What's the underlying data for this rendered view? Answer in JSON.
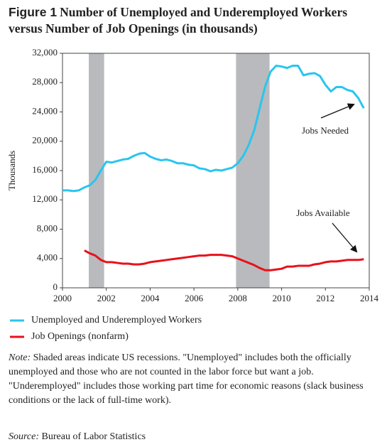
{
  "chart_data": {
    "type": "line",
    "figure_label": "Figure 1",
    "title": "Number of Unemployed and Underemployed Workers versus Number of Job Openings (in thousands)",
    "ylabel": "Thousands",
    "xlim": [
      2000,
      2014
    ],
    "xticks": [
      2000,
      2002,
      2004,
      2006,
      2008,
      2010,
      2012,
      2014
    ],
    "ylim": [
      0,
      32000
    ],
    "yticks": [
      0,
      {
        "value": 4000,
        "label": "4,000"
      },
      {
        "value": 8000,
        "label": "8,000"
      },
      {
        "value": 12000,
        "label": "12,000"
      },
      {
        "value": 16000,
        "label": "16,000"
      },
      {
        "value": 20000,
        "label": "20,000"
      },
      {
        "value": 24000,
        "label": "24,000"
      },
      {
        "value": 28000,
        "label": "28,000"
      },
      {
        "value": 32000,
        "label": "32,000"
      }
    ],
    "recessions": [
      {
        "start": 2001.2,
        "end": 2001.9
      },
      {
        "start": 2007.92,
        "end": 2009.45
      }
    ],
    "recession_color": "#b9babd",
    "x": [
      2000.0,
      2000.25,
      2000.5,
      2000.75,
      2001.0,
      2001.25,
      2001.5,
      2001.75,
      2002.0,
      2002.25,
      2002.5,
      2002.75,
      2003.0,
      2003.25,
      2003.5,
      2003.75,
      2004.0,
      2004.25,
      2004.5,
      2004.75,
      2005.0,
      2005.25,
      2005.5,
      2005.75,
      2006.0,
      2006.25,
      2006.5,
      2006.75,
      2007.0,
      2007.25,
      2007.5,
      2007.75,
      2008.0,
      2008.25,
      2008.5,
      2008.75,
      2009.0,
      2009.25,
      2009.5,
      2009.75,
      2010.0,
      2010.25,
      2010.5,
      2010.75,
      2011.0,
      2011.25,
      2011.5,
      2011.75,
      2012.0,
      2012.25,
      2012.5,
      2012.75,
      2013.0,
      2013.25,
      2013.5,
      2013.75
    ],
    "series": [
      {
        "name": "Unemployed and Underemployed Workers",
        "color": "#29c5f0",
        "values": [
          13300,
          13300,
          13200,
          13300,
          13700,
          14000,
          14700,
          16000,
          17200,
          17100,
          17300,
          17500,
          17600,
          18000,
          18300,
          18400,
          17900,
          17600,
          17400,
          17500,
          17300,
          17000,
          17000,
          16800,
          16700,
          16300,
          16200,
          15900,
          16100,
          16000,
          16200,
          16400,
          17000,
          18000,
          19500,
          21500,
          24500,
          27500,
          29500,
          30300,
          30200,
          30000,
          30300,
          30300,
          29000,
          29200,
          29300,
          28900,
          27700,
          26800,
          27400,
          27400,
          27000,
          26800,
          25900,
          24500
        ]
      },
      {
        "name": "Job Openings (nonfarm)",
        "color": "#e8111b",
        "values": [
          null,
          null,
          null,
          null,
          5100,
          4700,
          4400,
          3800,
          3500,
          3500,
          3400,
          3300,
          3300,
          3200,
          3200,
          3300,
          3500,
          3600,
          3700,
          3800,
          3900,
          4000,
          4100,
          4200,
          4300,
          4400,
          4400,
          4500,
          4500,
          4500,
          4400,
          4300,
          4000,
          3700,
          3400,
          3100,
          2700,
          2400,
          2400,
          2500,
          2600,
          2900,
          2900,
          3000,
          3000,
          3000,
          3200,
          3300,
          3500,
          3600,
          3600,
          3700,
          3800,
          3800,
          3800,
          3900
        ]
      }
    ],
    "annotations": [
      "Jobs Needed",
      "Jobs Available"
    ],
    "note_label": "Note:",
    "note": "Shaded areas indicate US recessions. \"Unemployed\" includes both the officially unemployed and those who are not counted in the labor force but want a job. \"Underemployed\" includes those working part time for economic reasons (slack business conditions or the lack of full-time work).",
    "source_label": "Source:",
    "source": "Bureau of Labor Statistics"
  }
}
